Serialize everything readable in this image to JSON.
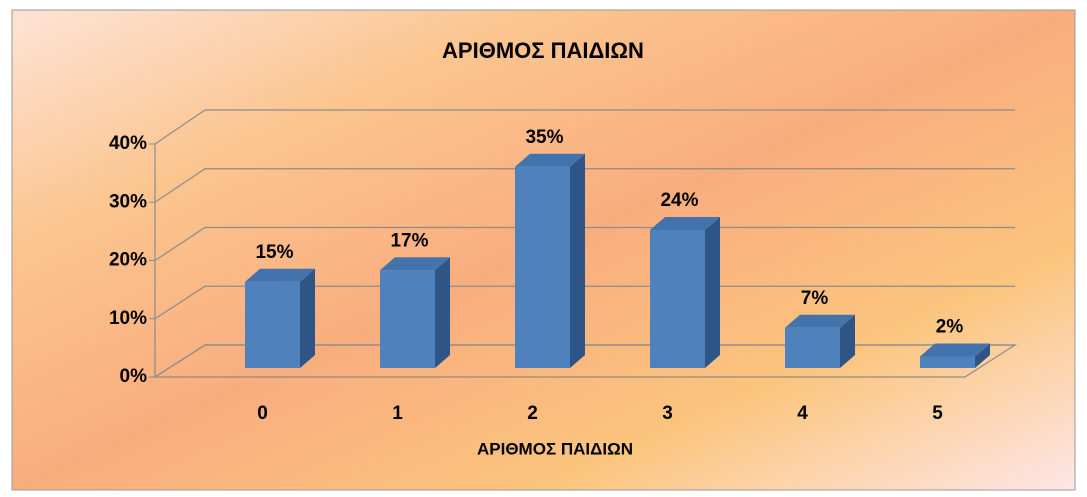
{
  "chart_data": {
    "type": "bar3d",
    "title": "ΑΡΙΘΜΟΣ ΠΑΙΔΙΩΝ",
    "x_label": "ΑΡΙΘΜΟΣ ΠΑΙΔΙΩΝ",
    "categories": [
      "0",
      "1",
      "2",
      "3",
      "4",
      "5"
    ],
    "values": [
      15,
      17,
      35,
      24,
      7,
      2
    ],
    "value_labels": [
      "15%",
      "17%",
      "35%",
      "24%",
      "7%",
      "2%"
    ],
    "color": "#4f81bd",
    "ylim": [
      0,
      40
    ],
    "yticks": [
      {
        "value": 0,
        "label": "0%"
      },
      {
        "value": 10,
        "label": "10%"
      },
      {
        "value": 20,
        "label": "20%"
      },
      {
        "value": 30,
        "label": "30%"
      },
      {
        "value": 40,
        "label": "40%"
      }
    ],
    "grid": true
  }
}
